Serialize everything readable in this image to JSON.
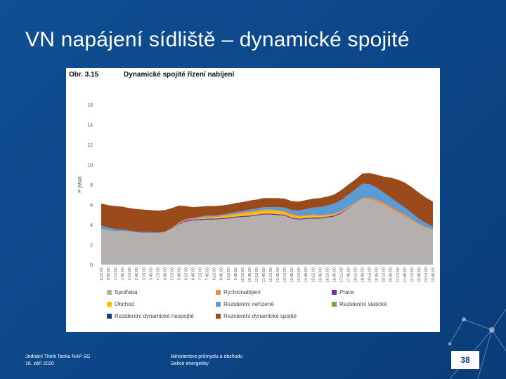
{
  "slide": {
    "title": "VN napájení sídliště – dynamické spojité",
    "footer_left_line1": "Jednání Think Tanku NAP SG",
    "footer_left_line2": "16. září 2020",
    "footer_mid_line1": "Ministerstvo průmyslu a obchodu",
    "footer_mid_line2": "Sekce energetiky",
    "page_number": "38"
  },
  "figure": {
    "number": "Obr. 3.15",
    "title": "Dynamické spojité řízení nabíjení"
  },
  "colors": {
    "background": "#0e4a8c",
    "spotreba": "#b3b0ae",
    "obchod": "#f4c20d",
    "rezidentni_dyn_nespojite": "#1f3c78",
    "rychlonabijeni": "#f08a3a",
    "rezidentni_nerizene": "#5b9bd5",
    "rezidentni_dyn_spojite": "#9b4a1c",
    "prace": "#7030a0",
    "rezidentni_staticke": "#70ad47"
  },
  "chart_data": {
    "type": "area",
    "title": "Dynamické spojité řízení nabíjení",
    "ylabel": "P (MW)",
    "xlabel": "",
    "ylim": [
      0,
      16
    ],
    "yticks": [
      0,
      2,
      4,
      6,
      8,
      10,
      12,
      14,
      16
    ],
    "grid": false,
    "legend_position": "bottom",
    "x": [
      "0:15:00",
      "0:45:00",
      "1:15:00",
      "1:45:00",
      "2:15:00",
      "2:45:00",
      "3:15:00",
      "3:45:00",
      "4:15:00",
      "4:45:00",
      "5:15:00",
      "5:45:00",
      "6:15:00",
      "6:45:00",
      "7:15:00",
      "7:45:00",
      "8:15:00",
      "8:45:00",
      "9:15:00",
      "9:45:00",
      "10:15:00",
      "10:45:00",
      "11:15:00",
      "11:45:00",
      "12:15:00",
      "12:45:00",
      "13:15:00",
      "13:45:00",
      "14:15:00",
      "14:45:00",
      "15:15:00",
      "15:45:00",
      "16:15:00",
      "16:45:00",
      "17:15:00",
      "17:45:00",
      "18:15:00",
      "18:45:00",
      "19:15:00",
      "19:45:00",
      "20:15:00",
      "20:45:00",
      "21:15:00",
      "21:45:00",
      "22:15:00",
      "22:45:00",
      "23:15:00",
      "23:45:00"
    ],
    "series": [
      {
        "name": "Spotřeba",
        "color": "#b3b0ae",
        "values": [
          3.6,
          3.45,
          3.35,
          3.35,
          3.3,
          3.2,
          3.15,
          3.15,
          3.15,
          3.2,
          3.5,
          4.0,
          4.3,
          4.4,
          4.45,
          4.5,
          4.5,
          4.55,
          4.6,
          4.7,
          4.75,
          4.8,
          4.9,
          5.0,
          5.0,
          4.95,
          4.9,
          4.6,
          4.5,
          4.55,
          4.6,
          4.6,
          4.7,
          4.8,
          5.1,
          5.6,
          6.1,
          6.6,
          6.55,
          6.3,
          6.0,
          5.6,
          5.2,
          4.8,
          4.4,
          4.0,
          3.7,
          3.5
        ]
      },
      {
        "name": "Obchod",
        "color": "#f4c20d",
        "values": [
          0,
          0,
          0,
          0,
          0,
          0,
          0,
          0,
          0,
          0,
          0,
          0,
          0,
          0,
          0.05,
          0.1,
          0.1,
          0.15,
          0.2,
          0.2,
          0.25,
          0.3,
          0.3,
          0.3,
          0.3,
          0.3,
          0.25,
          0.25,
          0.2,
          0.2,
          0.2,
          0.15,
          0.1,
          0.1,
          0.05,
          0.05,
          0,
          0,
          0,
          0,
          0,
          0,
          0,
          0,
          0,
          0,
          0,
          0
        ]
      },
      {
        "name": "Rezidentní dynamické nespojité",
        "color": "#1f3c78",
        "values": [
          0,
          0,
          0,
          0,
          0,
          0,
          0,
          0,
          0,
          0,
          0,
          0,
          0,
          0,
          0,
          0,
          0,
          0,
          0,
          0,
          0,
          0,
          0,
          0,
          0,
          0,
          0,
          0,
          0,
          0,
          0,
          0,
          0,
          0,
          0,
          0,
          0,
          0,
          0,
          0,
          0,
          0,
          0,
          0,
          0,
          0,
          0,
          0
        ]
      },
      {
        "name": "Rychlonabíjení",
        "color": "#f08a3a",
        "values": [
          0,
          0,
          0,
          0,
          0,
          0,
          0,
          0,
          0,
          0.05,
          0.1,
          0.1,
          0.1,
          0.1,
          0.1,
          0.1,
          0.1,
          0.1,
          0.1,
          0.1,
          0.1,
          0.1,
          0.1,
          0.1,
          0.1,
          0.1,
          0.1,
          0.1,
          0.1,
          0.1,
          0.1,
          0.1,
          0.1,
          0.1,
          0.1,
          0.1,
          0.1,
          0.1,
          0.15,
          0.2,
          0.2,
          0.2,
          0.2,
          0.2,
          0.15,
          0.1,
          0.05,
          0
        ]
      },
      {
        "name": "Rezidentní neřízené",
        "color": "#5b9bd5",
        "values": [
          0.3,
          0.25,
          0.2,
          0.15,
          0.1,
          0.1,
          0.1,
          0.1,
          0.05,
          0.05,
          0.05,
          0.05,
          0.05,
          0.05,
          0.1,
          0.1,
          0.1,
          0.1,
          0.1,
          0.15,
          0.15,
          0.2,
          0.2,
          0.25,
          0.25,
          0.3,
          0.35,
          0.4,
          0.5,
          0.6,
          0.7,
          0.8,
          0.9,
          1.0,
          1.1,
          1.2,
          1.3,
          1.4,
          1.35,
          1.2,
          1.0,
          0.9,
          0.8,
          0.7,
          0.6,
          0.5,
          0.4,
          0.3
        ]
      },
      {
        "name": "Rezidentní dynamické spojité",
        "color": "#9b4a1c",
        "values": [
          2.2,
          2.25,
          2.3,
          2.3,
          2.25,
          2.25,
          2.25,
          2.2,
          2.2,
          2.15,
          2.0,
          1.7,
          1.3,
          1.1,
          1.0,
          0.95,
          0.95,
          0.9,
          0.9,
          0.9,
          0.9,
          0.9,
          0.9,
          0.9,
          0.9,
          0.9,
          0.9,
          0.9,
          0.9,
          0.9,
          0.9,
          0.9,
          0.9,
          0.9,
          1.0,
          1.0,
          1.0,
          1.0,
          1.1,
          1.3,
          1.6,
          2.0,
          2.3,
          2.5,
          2.6,
          2.6,
          2.55,
          2.5
        ]
      },
      {
        "name": "Práce",
        "color": "#7030a0",
        "values": [
          0,
          0,
          0,
          0,
          0,
          0,
          0,
          0,
          0,
          0,
          0,
          0.05,
          0.1,
          0.1,
          0.1,
          0.1,
          0.1,
          0.1,
          0.1,
          0.1,
          0.1,
          0.1,
          0.1,
          0.1,
          0.1,
          0.1,
          0.1,
          0.1,
          0.1,
          0.1,
          0.1,
          0.1,
          0.1,
          0.1,
          0.1,
          0.05,
          0,
          0,
          0,
          0,
          0,
          0,
          0,
          0,
          0,
          0,
          0,
          0
        ]
      },
      {
        "name": "Rezidentní statické",
        "color": "#70ad47",
        "values": [
          0,
          0,
          0,
          0,
          0,
          0,
          0,
          0,
          0,
          0,
          0,
          0,
          0,
          0,
          0,
          0,
          0,
          0,
          0,
          0,
          0,
          0,
          0,
          0,
          0,
          0,
          0,
          0,
          0,
          0,
          0,
          0,
          0,
          0,
          0,
          0,
          0,
          0,
          0,
          0,
          0,
          0,
          0,
          0,
          0,
          0,
          0,
          0
        ]
      }
    ],
    "stack_order": [
      "Spotřeba",
      "Práce",
      "Obchod",
      "Rezidentní dynamické nespojité",
      "Rychlonabíjení",
      "Rezidentní neřízené",
      "Rezidentní statické",
      "Rezidentní dynamické spojité"
    ],
    "legend": [
      [
        "Spotřeba",
        "Rychlonabíjení",
        "Práce"
      ],
      [
        "Obchod",
        "Rezidentní neřízené",
        "Rezidentní statické"
      ],
      [
        "Rezidentní dynamické nespojité",
        "Rezidentní dynamické spojité"
      ]
    ]
  }
}
